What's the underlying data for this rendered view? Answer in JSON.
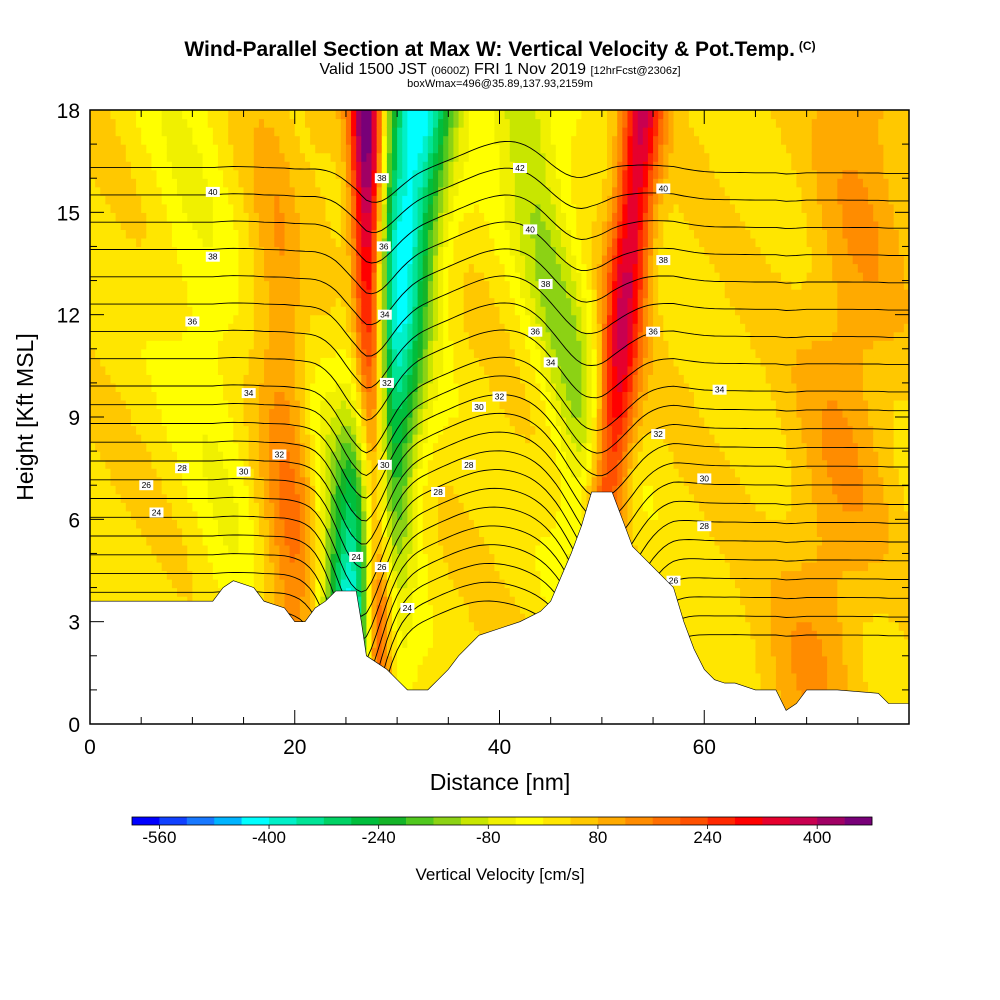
{
  "header": {
    "title": "Wind-Parallel Section at Max W: Vertical Velocity & Pot.Temp.",
    "copyright": "(C)",
    "valid_main": "Valid 1500 JST",
    "valid_utc": "(0600Z)",
    "valid_date": "FRI 1 Nov 2019",
    "forecast": "[12hrFcst@2306z]",
    "box_info": "boxWmax=496@35.89,137.93,2159m"
  },
  "chart_data": {
    "type": "heatmap",
    "xlabel": "Distance [nm]",
    "ylabel": "Height [Kft MSL]",
    "xlim": [
      0,
      80
    ],
    "ylim": [
      0,
      18
    ],
    "x_ticks": [
      "0",
      "20",
      "40",
      "60"
    ],
    "y_ticks": [
      "0",
      "3",
      "6",
      "9",
      "12",
      "15",
      "18"
    ],
    "colorbar": {
      "label": "Vertical Velocity [cm/s]",
      "tick_labels": [
        "-560",
        "-400",
        "-240",
        "-80",
        "80",
        "240",
        "400"
      ],
      "min": -600,
      "max": 480,
      "step": 40,
      "colors": [
        "#0000ff",
        "#1040ff",
        "#1878ff",
        "#00b4ff",
        "#00ffff",
        "#00f0c8",
        "#00e496",
        "#00d264",
        "#00be3c",
        "#14b428",
        "#50c81e",
        "#8cd214",
        "#c8e600",
        "#f0f000",
        "#ffff00",
        "#ffe600",
        "#ffc800",
        "#ffaa00",
        "#ff8c00",
        "#ff6e00",
        "#ff5000",
        "#ff2800",
        "#ff0000",
        "#e6002d",
        "#c80050",
        "#a00064",
        "#780078"
      ]
    },
    "terrain": [
      [
        0,
        3.6
      ],
      [
        5,
        3.6
      ],
      [
        12,
        3.6
      ],
      [
        13,
        4.0
      ],
      [
        14,
        4.2
      ],
      [
        16,
        4.0
      ],
      [
        17,
        3.6
      ],
      [
        19,
        3.4
      ],
      [
        20,
        3.0
      ],
      [
        21,
        3.0
      ],
      [
        22,
        3.4
      ],
      [
        23,
        3.6
      ],
      [
        24,
        3.9
      ],
      [
        26,
        3.9
      ],
      [
        26.5,
        3.0
      ],
      [
        27,
        2.0
      ],
      [
        29,
        1.6
      ],
      [
        30,
        1.3
      ],
      [
        31,
        1.0
      ],
      [
        33,
        1.0
      ],
      [
        34,
        1.3
      ],
      [
        35,
        1.6
      ],
      [
        36,
        2.0
      ],
      [
        38,
        2.6
      ],
      [
        40,
        2.8
      ],
      [
        42,
        3.0
      ],
      [
        44,
        3.3
      ],
      [
        45,
        3.6
      ],
      [
        46,
        4.3
      ],
      [
        47,
        5.0
      ],
      [
        48,
        5.8
      ],
      [
        49,
        6.8
      ],
      [
        51,
        6.8
      ],
      [
        52,
        6.0
      ],
      [
        53,
        5.2
      ],
      [
        55,
        4.6
      ],
      [
        57,
        4.0
      ],
      [
        58,
        3.0
      ],
      [
        59,
        2.2
      ],
      [
        60,
        1.6
      ],
      [
        61,
        1.3
      ],
      [
        62,
        1.2
      ],
      [
        63,
        1.2
      ],
      [
        65,
        1.0
      ],
      [
        67,
        1.0
      ],
      [
        68,
        0.4
      ],
      [
        69,
        0.6
      ],
      [
        70,
        1.0
      ],
      [
        73,
        1.0
      ],
      [
        77,
        0.9
      ],
      [
        78,
        0.6
      ],
      [
        80,
        0.6
      ]
    ],
    "features": [
      {
        "kind": "updraft",
        "center": [
          [
            3.6,
            28
          ],
          [
            18,
            27
          ]
        ],
        "amplitude": 500,
        "width_nm": 1.6
      },
      {
        "kind": "downdraft",
        "center": [
          [
            3.6,
            26.5
          ],
          [
            18,
            32
          ]
        ],
        "amplitude": -460,
        "width_nm": 3.4
      },
      {
        "kind": "updraft",
        "center": [
          [
            6.8,
            50.5
          ],
          [
            18,
            54
          ]
        ],
        "amplitude": 330,
        "width_nm": 2.0
      },
      {
        "kind": "downdraft",
        "center": [
          [
            6.8,
            49.5
          ],
          [
            18,
            42
          ]
        ],
        "amplitude": -160,
        "width_nm": 3.2
      },
      {
        "kind": "updraft",
        "center": [
          [
            3.6,
            20
          ],
          [
            18,
            20
          ]
        ],
        "amplitude": 150,
        "width_nm": 3.5
      },
      {
        "kind": "downdraft",
        "center": [
          [
            3.6,
            24.5
          ],
          [
            9,
            22
          ],
          [
            18,
            20
          ]
        ],
        "amplitude": -120,
        "width_nm": 2.5
      },
      {
        "kind": "downdraft",
        "center": [
          [
            3.6,
            15
          ],
          [
            12,
            11
          ],
          [
            18,
            9
          ]
        ],
        "amplitude": -60,
        "width_nm": 4.0
      },
      {
        "kind": "updraft",
        "center": [
          [
            1.0,
            70
          ],
          [
            6,
            73
          ],
          [
            18,
            76
          ]
        ],
        "amplitude": 80,
        "width_nm": 5.0
      }
    ],
    "isentropes_K": [
      21,
      22,
      23,
      24,
      25,
      26,
      27,
      28,
      29,
      30,
      31,
      32,
      33,
      34,
      35,
      36,
      37,
      38,
      39,
      40,
      41,
      42
    ],
    "isentrope_labels": [
      {
        "theta": 24,
        "x": 6.5,
        "y": 6.2
      },
      {
        "theta": 26,
        "x": 5.5,
        "y": 7.0
      },
      {
        "theta": 28,
        "x": 9,
        "y": 7.5
      },
      {
        "theta": 30,
        "x": 15,
        "y": 7.4
      },
      {
        "theta": 32,
        "x": 18.5,
        "y": 7.9
      },
      {
        "theta": 34,
        "x": 15.5,
        "y": 9.7
      },
      {
        "theta": 36,
        "x": 10,
        "y": 11.8
      },
      {
        "theta": 38,
        "x": 12,
        "y": 13.7
      },
      {
        "theta": 40,
        "x": 12,
        "y": 15.6
      },
      {
        "theta": 24,
        "x": 26,
        "y": 4.9
      },
      {
        "theta": 26,
        "x": 28.5,
        "y": 4.6
      },
      {
        "theta": 24,
        "x": 31,
        "y": 3.4
      },
      {
        "theta": 30,
        "x": 28.8,
        "y": 7.6
      },
      {
        "theta": 32,
        "x": 29,
        "y": 10.0
      },
      {
        "theta": 34,
        "x": 28.8,
        "y": 12.0
      },
      {
        "theta": 36,
        "x": 28.7,
        "y": 14.0
      },
      {
        "theta": 38,
        "x": 28.5,
        "y": 16.0
      },
      {
        "theta": 28,
        "x": 34,
        "y": 6.8
      },
      {
        "theta": 28,
        "x": 37,
        "y": 7.6
      },
      {
        "theta": 30,
        "x": 38,
        "y": 9.3
      },
      {
        "theta": 32,
        "x": 40,
        "y": 9.6
      },
      {
        "theta": 34,
        "x": 45,
        "y": 10.6
      },
      {
        "theta": 36,
        "x": 43.5,
        "y": 11.5
      },
      {
        "theta": 38,
        "x": 44.5,
        "y": 12.9
      },
      {
        "theta": 40,
        "x": 43,
        "y": 14.5
      },
      {
        "theta": 42,
        "x": 42,
        "y": 16.3
      },
      {
        "theta": 26,
        "x": 57,
        "y": 4.2
      },
      {
        "theta": 28,
        "x": 60,
        "y": 5.8
      },
      {
        "theta": 30,
        "x": 60,
        "y": 7.2
      },
      {
        "theta": 32,
        "x": 55.5,
        "y": 8.5
      },
      {
        "theta": 34,
        "x": 61.5,
        "y": 9.8
      },
      {
        "theta": 36,
        "x": 55,
        "y": 11.5
      },
      {
        "theta": 38,
        "x": 56,
        "y": 13.6
      },
      {
        "theta": 40,
        "x": 56,
        "y": 15.7
      }
    ]
  }
}
